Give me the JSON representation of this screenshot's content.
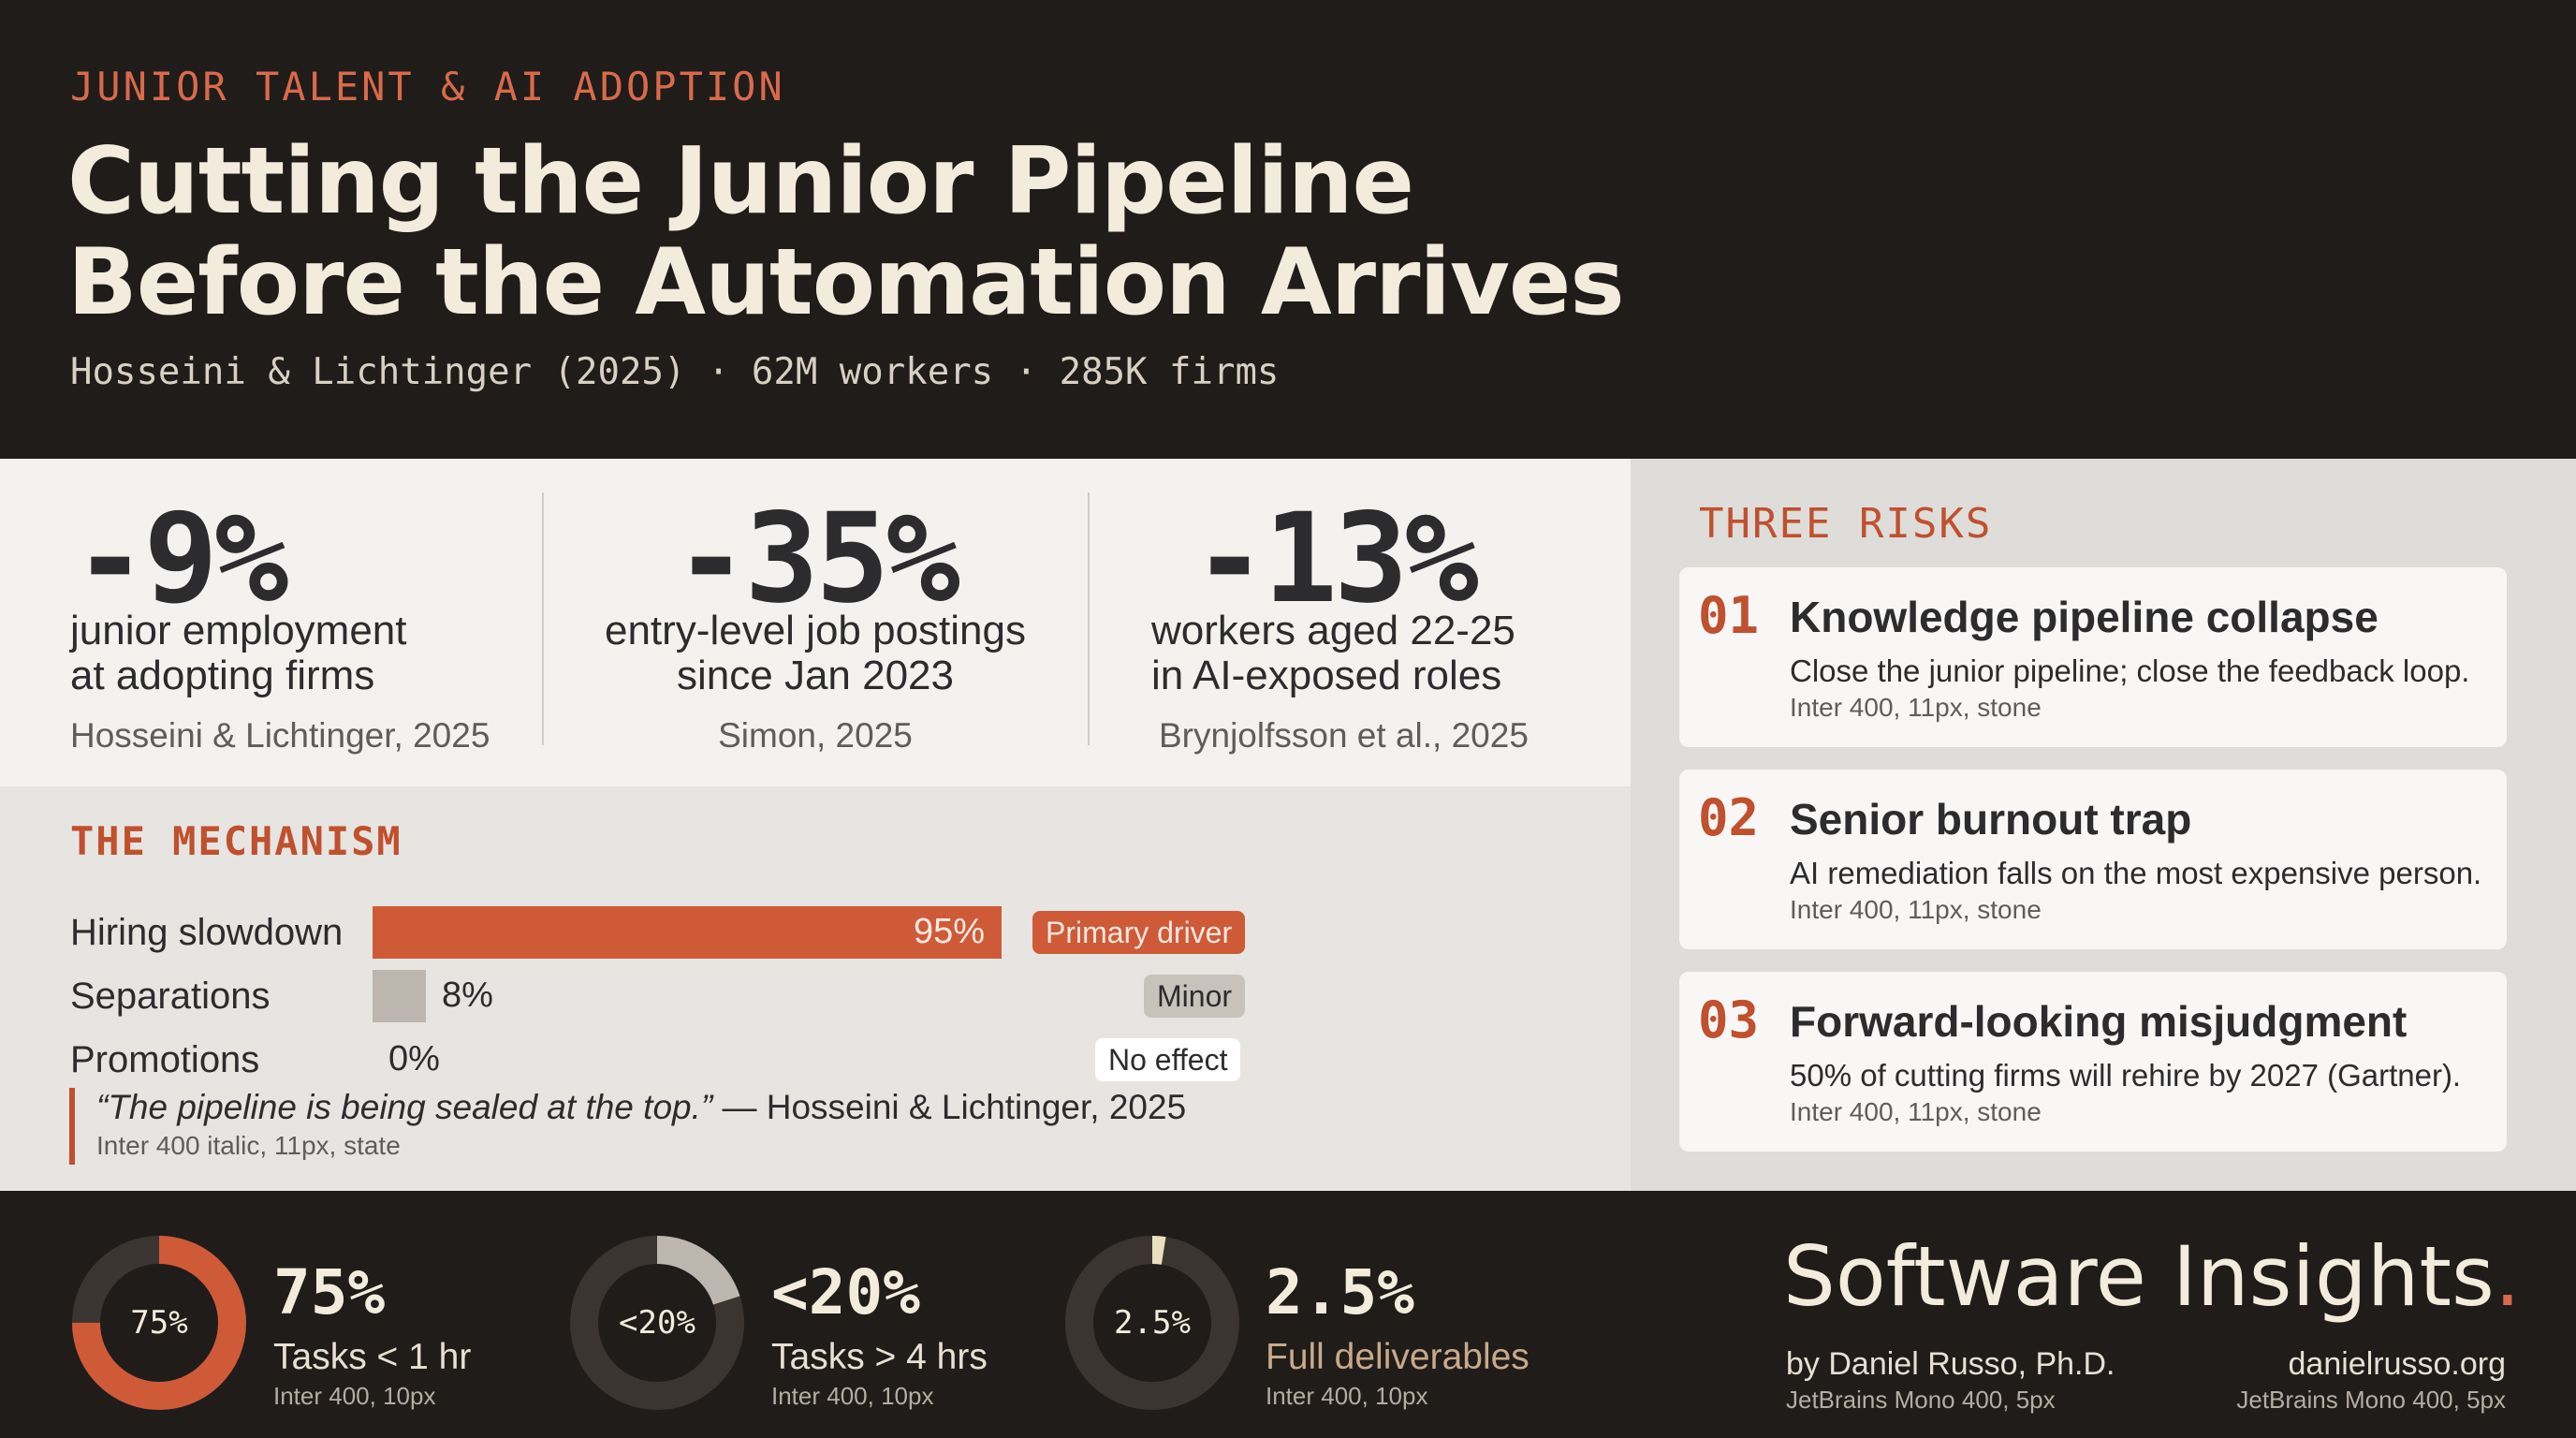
{
  "header": {
    "eyebrow": "JUNIOR TALENT & AI ADOPTION",
    "title_line1": "Cutting the Junior Pipeline",
    "title_line2": "Before the Automation Arrives",
    "subtitle": "Hosseini & Lichtinger (2025) · 62M workers · 285K firms"
  },
  "stats": [
    {
      "value": "-9%",
      "desc_line1": "junior employment",
      "desc_line2": "at adopting firms",
      "source": "Hosseini & Lichtinger, 2025"
    },
    {
      "value": "-35%",
      "desc_line1": "entry-level job postings",
      "desc_line2": "since Jan 2023",
      "source": "Simon, 2025"
    },
    {
      "value": "-13%",
      "desc_line1": "workers aged 22-25",
      "desc_line2": "in AI-exposed roles",
      "source": "Brynjolfsson et al., 2025"
    }
  ],
  "mechanism": {
    "title": "THE MECHANISM",
    "rows": [
      {
        "label": "Hiring slowdown",
        "value_label": "95%",
        "value": 95,
        "tag": "Primary driver",
        "color": "#cf5a38"
      },
      {
        "label": "Separations",
        "value_label": "8%",
        "value": 8,
        "tag": "Minor",
        "color": "#bcb6ae"
      },
      {
        "label": "Promotions",
        "value_label": "0%",
        "value": 0,
        "tag": "No effect",
        "color": "#ffffff"
      }
    ],
    "quote_text": "“The pipeline is being sealed at the top.”",
    "quote_source": " — Hosseini & Lichtinger, 2025",
    "quote_note": "Inter 400 italic, 11px, state"
  },
  "risks": {
    "title": "THREE RISKS",
    "items": [
      {
        "num": "01",
        "title": "Knowledge pipeline collapse",
        "desc": "Close the junior pipeline; close the feedback loop.",
        "note": "Inter 400, 11px, stone"
      },
      {
        "num": "02",
        "title": "Senior burnout trap",
        "desc": "AI remediation falls on the most expensive person.",
        "note": "Inter 400, 11px, stone"
      },
      {
        "num": "03",
        "title": "Forward-looking misjudgment",
        "desc": "50% of cutting firms will rehire by 2027 (Gartner).",
        "note": "Inter 400, 11px, stone"
      }
    ]
  },
  "footer": {
    "kpis": [
      {
        "donut_label": "75%",
        "value": "75%",
        "fraction": 0.75,
        "label": "Tasks < 1 hr",
        "note": "Inter 400, 10px",
        "color": "#cf5a38"
      },
      {
        "donut_label": "<20%",
        "value": "<20%",
        "fraction": 0.2,
        "label": "Tasks > 4 hrs",
        "note": "Inter 400, 10px",
        "color": "#bcb6ae"
      },
      {
        "donut_label": "2.5%",
        "value": "2.5%",
        "fraction": 0.025,
        "label": "Full deliverables",
        "note": "Inter 400, 10px",
        "color": "#e9dfbf"
      }
    ],
    "brand_name": "Software Insights",
    "brand_dot": ".",
    "byline": "by Daniel Russo, Ph.D.",
    "byline_note": "JetBrains Mono 400, 5px",
    "site": "danielrusso.org",
    "site_note": "JetBrains Mono 400, 5px"
  },
  "colors": {
    "accent": "#cf5a38",
    "dark_bg": "#1f1c1a",
    "cream": "#f3ecdd"
  }
}
